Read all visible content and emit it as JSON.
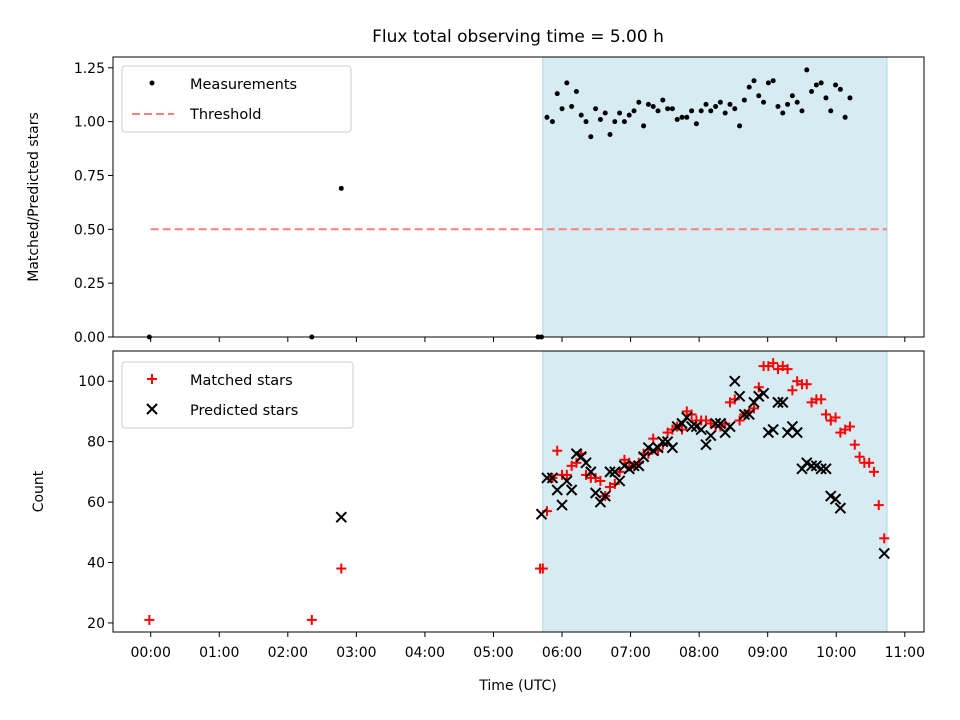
{
  "chart_data": [
    {
      "type": "scatter",
      "title": "Flux total observing time = 5.00 h",
      "ylabel": "Matched/Predicted stars",
      "xlim": [
        -0.55,
        11.28
      ],
      "ylim": [
        0,
        1.3
      ],
      "yticks": [
        0,
        0.25,
        0.5,
        0.75,
        1.0,
        1.25
      ],
      "ytick_labels": [
        "0.00",
        "0.25",
        "0.50",
        "0.75",
        "1.00",
        "1.25"
      ],
      "shaded_span": {
        "x0": 5.72,
        "x1": 10.74,
        "color": "#add8e6"
      },
      "threshold": {
        "name": "Threshold",
        "y": 0.5,
        "x0": 0.0,
        "x1": 10.74,
        "color": "#ff7f7f"
      },
      "legend": [
        "Measurements",
        "Threshold"
      ],
      "legend_loc": "upper left",
      "series": [
        {
          "name": "Measurements",
          "color": "#000000",
          "points": [
            [
              -0.02,
              0.0
            ],
            [
              2.35,
              0.0
            ],
            [
              2.78,
              0.69
            ],
            [
              5.65,
              0.0
            ],
            [
              5.7,
              0.0
            ],
            [
              5.78,
              1.02
            ],
            [
              5.86,
              1.0
            ],
            [
              5.93,
              1.13
            ],
            [
              6.0,
              1.06
            ],
            [
              6.07,
              1.18
            ],
            [
              6.14,
              1.07
            ],
            [
              6.21,
              1.14
            ],
            [
              6.28,
              1.03
            ],
            [
              6.35,
              1.0
            ],
            [
              6.42,
              0.93
            ],
            [
              6.49,
              1.06
            ],
            [
              6.56,
              1.01
            ],
            [
              6.63,
              1.04
            ],
            [
              6.7,
              0.94
            ],
            [
              6.77,
              1.0
            ],
            [
              6.84,
              1.04
            ],
            [
              6.91,
              1.0
            ],
            [
              6.98,
              1.03
            ],
            [
              7.05,
              1.05
            ],
            [
              7.12,
              1.09
            ],
            [
              7.19,
              0.98
            ],
            [
              7.26,
              1.08
            ],
            [
              7.33,
              1.07
            ],
            [
              7.4,
              1.05
            ],
            [
              7.47,
              1.1
            ],
            [
              7.54,
              1.06
            ],
            [
              7.61,
              1.06
            ],
            [
              7.68,
              1.01
            ],
            [
              7.75,
              1.02
            ],
            [
              7.82,
              1.02
            ],
            [
              7.89,
              1.05
            ],
            [
              7.96,
              0.99
            ],
            [
              8.03,
              1.05
            ],
            [
              8.1,
              1.08
            ],
            [
              8.17,
              1.05
            ],
            [
              8.24,
              1.07
            ],
            [
              8.31,
              1.09
            ],
            [
              8.38,
              1.04
            ],
            [
              8.45,
              1.08
            ],
            [
              8.52,
              1.06
            ],
            [
              8.59,
              0.98
            ],
            [
              8.66,
              1.1
            ],
            [
              8.73,
              1.16
            ],
            [
              8.8,
              1.19
            ],
            [
              8.87,
              1.12
            ],
            [
              8.94,
              1.09
            ],
            [
              9.01,
              1.18
            ],
            [
              9.08,
              1.19
            ],
            [
              9.15,
              1.07
            ],
            [
              9.22,
              1.04
            ],
            [
              9.29,
              1.08
            ],
            [
              9.36,
              1.12
            ],
            [
              9.43,
              1.09
            ],
            [
              9.5,
              1.05
            ],
            [
              9.57,
              1.24
            ],
            [
              9.64,
              1.14
            ],
            [
              9.71,
              1.17
            ],
            [
              9.78,
              1.18
            ],
            [
              9.85,
              1.11
            ],
            [
              9.92,
              1.05
            ],
            [
              9.99,
              1.17
            ],
            [
              10.06,
              1.15
            ],
            [
              10.13,
              1.02
            ],
            [
              10.2,
              1.11
            ]
          ]
        }
      ]
    },
    {
      "type": "scatter",
      "xlabel": "Time (UTC)",
      "ylabel": "Count",
      "xlim": [
        -0.55,
        11.28
      ],
      "ylim": [
        17,
        110
      ],
      "yticks": [
        20,
        40,
        60,
        80,
        100
      ],
      "ytick_labels": [
        "20",
        "40",
        "60",
        "80",
        "100"
      ],
      "xticks": [
        0,
        1,
        2,
        3,
        4,
        5,
        6,
        7,
        8,
        9,
        10,
        11
      ],
      "xtick_labels": [
        "00:00",
        "01:00",
        "02:00",
        "03:00",
        "04:00",
        "05:00",
        "06:00",
        "07:00",
        "08:00",
        "09:00",
        "10:00",
        "11:00"
      ],
      "shaded_span": {
        "x0": 5.72,
        "x1": 10.74,
        "color": "#add8e6"
      },
      "legend": [
        "Matched stars",
        "Predicted stars"
      ],
      "legend_loc": "upper left",
      "series": [
        {
          "name": "Matched stars",
          "color": "#ff0000",
          "marker": "plus",
          "points": [
            [
              -0.02,
              21
            ],
            [
              2.35,
              21
            ],
            [
              2.78,
              38
            ],
            [
              5.68,
              38
            ],
            [
              5.72,
              38
            ],
            [
              5.78,
              57
            ],
            [
              5.86,
              68
            ],
            [
              5.93,
              77
            ],
            [
              6.0,
              69
            ],
            [
              6.07,
              69
            ],
            [
              6.14,
              72
            ],
            [
              6.21,
              73
            ],
            [
              6.28,
              76
            ],
            [
              6.35,
              69
            ],
            [
              6.42,
              68
            ],
            [
              6.49,
              68
            ],
            [
              6.56,
              67
            ],
            [
              6.63,
              62
            ],
            [
              6.7,
              65
            ],
            [
              6.77,
              66
            ],
            [
              6.84,
              70
            ],
            [
              6.91,
              74
            ],
            [
              6.98,
              73
            ],
            [
              7.05,
              72
            ],
            [
              7.12,
              73
            ],
            [
              7.19,
              76
            ],
            [
              7.26,
              76
            ],
            [
              7.33,
              81
            ],
            [
              7.4,
              77
            ],
            [
              7.47,
              79
            ],
            [
              7.54,
              83
            ],
            [
              7.61,
              84
            ],
            [
              7.68,
              85
            ],
            [
              7.75,
              84
            ],
            [
              7.82,
              90
            ],
            [
              7.89,
              89
            ],
            [
              7.96,
              87
            ],
            [
              8.03,
              87
            ],
            [
              8.1,
              87
            ],
            [
              8.17,
              86
            ],
            [
              8.24,
              85
            ],
            [
              8.31,
              85
            ],
            [
              8.38,
              86
            ],
            [
              8.45,
              93
            ],
            [
              8.52,
              94
            ],
            [
              8.59,
              87
            ],
            [
              8.66,
              89
            ],
            [
              8.73,
              90
            ],
            [
              8.8,
              91
            ],
            [
              8.87,
              98
            ],
            [
              8.94,
              105
            ],
            [
              9.01,
              105
            ],
            [
              9.08,
              106
            ],
            [
              9.15,
              104
            ],
            [
              9.22,
              105
            ],
            [
              9.29,
              104
            ],
            [
              9.36,
              97
            ],
            [
              9.43,
              100
            ],
            [
              9.5,
              99
            ],
            [
              9.57,
              99
            ],
            [
              9.64,
              93
            ],
            [
              9.71,
              94
            ],
            [
              9.78,
              94
            ],
            [
              9.85,
              89
            ],
            [
              9.92,
              87
            ],
            [
              9.99,
              88
            ],
            [
              10.06,
              83
            ],
            [
              10.13,
              84
            ],
            [
              10.2,
              85
            ],
            [
              10.27,
              79
            ],
            [
              10.34,
              75
            ],
            [
              10.41,
              73
            ],
            [
              10.48,
              73
            ],
            [
              10.55,
              70
            ],
            [
              10.62,
              59
            ],
            [
              10.7,
              48
            ]
          ]
        },
        {
          "name": "Predicted stars",
          "color": "#000000",
          "marker": "x",
          "points": [
            [
              2.78,
              55
            ],
            [
              5.7,
              56
            ],
            [
              5.78,
              68
            ],
            [
              5.86,
              68
            ],
            [
              5.93,
              64
            ],
            [
              6.0,
              59
            ],
            [
              6.07,
              67
            ],
            [
              6.14,
              64
            ],
            [
              6.21,
              76
            ],
            [
              6.28,
              75
            ],
            [
              6.35,
              73
            ],
            [
              6.42,
              70
            ],
            [
              6.49,
              63
            ],
            [
              6.56,
              60
            ],
            [
              6.63,
              62
            ],
            [
              6.7,
              70
            ],
            [
              6.77,
              70
            ],
            [
              6.84,
              67
            ],
            [
              6.91,
              72
            ],
            [
              6.98,
              71
            ],
            [
              7.05,
              72
            ],
            [
              7.12,
              72
            ],
            [
              7.19,
              75
            ],
            [
              7.26,
              78
            ],
            [
              7.33,
              77
            ],
            [
              7.4,
              78
            ],
            [
              7.47,
              80
            ],
            [
              7.54,
              80
            ],
            [
              7.61,
              78
            ],
            [
              7.68,
              85
            ],
            [
              7.75,
              86
            ],
            [
              7.82,
              88
            ],
            [
              7.89,
              85
            ],
            [
              7.96,
              85
            ],
            [
              8.03,
              84
            ],
            [
              8.1,
              79
            ],
            [
              8.17,
              82
            ],
            [
              8.24,
              86
            ],
            [
              8.31,
              86
            ],
            [
              8.38,
              83
            ],
            [
              8.45,
              85
            ],
            [
              8.52,
              100
            ],
            [
              8.59,
              95
            ],
            [
              8.66,
              89
            ],
            [
              8.73,
              89
            ],
            [
              8.8,
              93
            ],
            [
              8.87,
              95
            ],
            [
              8.94,
              96
            ],
            [
              9.01,
              83
            ],
            [
              9.08,
              84
            ],
            [
              9.15,
              93
            ],
            [
              9.22,
              93
            ],
            [
              9.29,
              83
            ],
            [
              9.36,
              85
            ],
            [
              9.43,
              83
            ],
            [
              9.5,
              71
            ],
            [
              9.57,
              73
            ],
            [
              9.64,
              72
            ],
            [
              9.71,
              72
            ],
            [
              9.78,
              71
            ],
            [
              9.85,
              71
            ],
            [
              9.92,
              62
            ],
            [
              9.99,
              61
            ],
            [
              10.06,
              58
            ],
            [
              10.7,
              43
            ]
          ]
        }
      ]
    }
  ]
}
